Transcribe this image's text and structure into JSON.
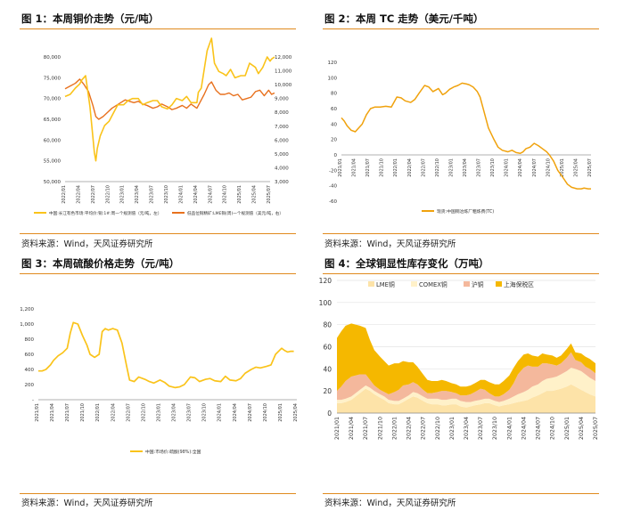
{
  "colors": {
    "orange": "#F0A20D",
    "deep_orange": "#E8711E",
    "yellow": "#FAC31A",
    "accent_rule": "#E08A1E",
    "lme": "#FDE3A8",
    "comex": "#FFF1C9",
    "shfe": "#F4B89C",
    "bonded": "#F5B800"
  },
  "source_text": "资料来源：Wind，天风证券研究所",
  "chart_data": [
    {
      "id": "copper-price",
      "type": "line",
      "title": "图 1：本周铜价走势（元/吨）",
      "x_ticks": [
        "2022/01",
        "2022/04",
        "2022/07",
        "2022/10",
        "2023/01",
        "2023/04",
        "2023/07",
        "2023/10",
        "2024/01",
        "2024/04",
        "2024/07",
        "2024/10",
        "2025/01",
        "2025/04",
        "2025/07"
      ],
      "y_left": {
        "min": 50000,
        "max": 80000,
        "ticks": [
          "50,000",
          "55,000",
          "60,000",
          "65,000",
          "70,000",
          "75,000",
          "80,000"
        ]
      },
      "y_right": {
        "min": 3000,
        "max": 12000,
        "ticks": [
          "3,000",
          "4,000",
          "5,000",
          "6,000",
          "7,000",
          "8,000",
          "9,000",
          "10,000",
          "11,000",
          "12,000"
        ]
      },
      "series": [
        {
          "name": "中国:长江有色市场:平均价:铜:1#:周一个规测值（元/吨，左）",
          "axis": "left",
          "x": [
            0,
            0.35,
            0.7,
            1,
            1.15,
            1.4,
            1.7,
            2,
            2.1,
            2.2,
            2.4,
            2.7,
            3,
            3.3,
            3.6,
            4,
            4.3,
            4.6,
            5,
            5.3,
            5.6,
            6,
            6.3,
            6.6,
            7,
            7.3,
            7.6,
            8,
            8.3,
            8.6,
            9,
            9.1,
            9.3,
            9.5,
            9.7,
            10,
            10.2,
            10.5,
            10.8,
            11,
            11.3,
            11.6,
            12,
            12.3,
            12.6,
            13,
            13.2,
            13.5,
            13.8,
            14,
            14.1,
            14.3
          ],
          "values": [
            70500,
            71000,
            72500,
            73500,
            74500,
            75500,
            68000,
            57000,
            55000,
            58000,
            61000,
            63500,
            64500,
            66500,
            68500,
            68500,
            69500,
            70000,
            70000,
            68500,
            69000,
            69500,
            69500,
            68000,
            67500,
            68500,
            70000,
            69500,
            70500,
            69000,
            69000,
            71500,
            72500,
            77000,
            81500,
            84500,
            78500,
            76500,
            76000,
            75500,
            77000,
            75000,
            75500,
            75500,
            78500,
            77500,
            76000,
            77500,
            80000,
            79000,
            79500,
            80000
          ]
        },
        {
          "name": "低品位铜精矿:LME铜(周)一个规测值（美元/吨，右）",
          "axis": "right",
          "x": [
            0,
            0.35,
            0.7,
            1,
            1.3,
            1.6,
            1.9,
            2.1,
            2.3,
            2.6,
            2.9,
            3.2,
            3.5,
            3.8,
            4.1,
            4.4,
            4.7,
            5,
            5.3,
            5.6,
            6,
            6.3,
            6.6,
            7,
            7.3,
            7.6,
            8,
            8.3,
            8.6,
            9,
            9.2,
            9.5,
            9.8,
            10,
            10.3,
            10.6,
            10.9,
            11.2,
            11.5,
            11.8,
            12.1,
            12.4,
            12.7,
            13,
            13.3,
            13.6,
            13.9,
            14.1,
            14.3
          ],
          "values": [
            9700,
            9900,
            10100,
            10400,
            10000,
            9500,
            8500,
            7700,
            7500,
            7700,
            8000,
            8300,
            8500,
            8700,
            8900,
            8800,
            8700,
            8800,
            8600,
            8500,
            8300,
            8400,
            8600,
            8400,
            8200,
            8300,
            8500,
            8300,
            8600,
            8300,
            8700,
            9300,
            10000,
            10200,
            9600,
            9300,
            9300,
            9400,
            9200,
            9300,
            8900,
            9000,
            9100,
            9500,
            9600,
            9200,
            9600,
            9300,
            9400
          ]
        }
      ]
    },
    {
      "id": "tc",
      "type": "line",
      "title": "图 2：本周 TC 走势（美元/千吨）",
      "x_ticks": [
        "2021/01",
        "2021/04",
        "2021/07",
        "2021/10",
        "2022/01",
        "2022/04",
        "2022/07",
        "2022/10",
        "2023/01",
        "2023/04",
        "2023/07",
        "2023/10",
        "2024/01",
        "2024/04",
        "2024/07",
        "2024/10",
        "2025/01",
        "2025/04",
        "2025/07"
      ],
      "y": {
        "min": -60,
        "max": 120,
        "ticks": [
          "-60",
          "-40",
          "-20",
          "0",
          "20",
          "40",
          "60",
          "80",
          "100",
          "120"
        ]
      },
      "series": [
        {
          "name": "现货:中国铜冶炼厂粗炼费(TC)",
          "x": [
            0,
            0.2,
            0.4,
            0.7,
            1,
            1.2,
            1.5,
            1.8,
            2.1,
            2.4,
            2.8,
            3.2,
            3.6,
            4,
            4.3,
            4.6,
            5,
            5.3,
            5.6,
            6,
            6.3,
            6.6,
            7,
            7.3,
            7.5,
            7.8,
            8.1,
            8.4,
            8.7,
            9,
            9.2,
            9.5,
            9.8,
            10,
            10.3,
            10.6,
            11,
            11.3,
            11.6,
            12,
            12.3,
            12.6,
            12.9,
            13.1,
            13.3,
            13.6,
            13.9,
            14.2,
            14.5,
            14.8,
            15,
            15.3,
            15.6,
            16,
            16.3,
            16.6,
            17,
            17.3,
            17.5,
            17.8,
            18
          ],
          "values": [
            48,
            44,
            38,
            32,
            30,
            34,
            40,
            52,
            60,
            62,
            62,
            63,
            62,
            75,
            74,
            70,
            68,
            72,
            80,
            90,
            88,
            82,
            86,
            78,
            80,
            85,
            88,
            90,
            93,
            92,
            91,
            88,
            82,
            75,
            55,
            35,
            20,
            10,
            6,
            4,
            6,
            3,
            2,
            4,
            8,
            10,
            15,
            12,
            8,
            4,
            0,
            -8,
            -20,
            -30,
            -38,
            -42,
            -44,
            -44,
            -43,
            -44,
            -44
          ]
        }
      ]
    },
    {
      "id": "sulfuric-acid",
      "type": "line",
      "title": "图 3：本周硫酸价格走势（元/吨）",
      "x_ticks": [
        "2021/01",
        "2021/04",
        "2021/07",
        "2021/10",
        "2022/01",
        "2022/04",
        "2022/07",
        "2022/10",
        "2023/01",
        "2023/04",
        "2023/07",
        "2023/10",
        "2024/01",
        "2024/04",
        "2024/07",
        "2024/10",
        "2025/01",
        "2025/04"
      ],
      "y": {
        "min": 0,
        "max": 1200,
        "ticks": [
          "-",
          "200",
          "400",
          "600",
          "800",
          "1,000",
          "1,200"
        ]
      },
      "series": [
        {
          "name": "中国:市场价:硫酸(98%):全国",
          "x": [
            0,
            0.25,
            0.5,
            0.8,
            1,
            1.3,
            1.6,
            1.9,
            2.1,
            2.3,
            2.6,
            2.9,
            3.2,
            3.4,
            3.7,
            4,
            4.2,
            4.4,
            4.6,
            4.9,
            5.2,
            5.5,
            5.8,
            6,
            6.3,
            6.6,
            7,
            7.3,
            7.6,
            8,
            8.3,
            8.6,
            9,
            9.3,
            9.6,
            10,
            10.3,
            10.6,
            11,
            11.3,
            11.6,
            12,
            12.3,
            12.6,
            13,
            13.3,
            13.6,
            14,
            14.3,
            14.6,
            15,
            15.3,
            15.6,
            16,
            16.2,
            16.4,
            16.6,
            16.8
          ],
          "values": [
            380,
            380,
            400,
            460,
            520,
            580,
            620,
            680,
            880,
            1020,
            1000,
            850,
            720,
            600,
            560,
            600,
            900,
            940,
            920,
            940,
            920,
            750,
            450,
            260,
            240,
            300,
            270,
            240,
            220,
            260,
            230,
            180,
            160,
            170,
            200,
            300,
            290,
            240,
            270,
            280,
            250,
            240,
            310,
            260,
            250,
            280,
            350,
            400,
            430,
            420,
            440,
            460,
            600,
            680,
            650,
            630,
            640,
            640
          ]
        }
      ]
    },
    {
      "id": "inventory",
      "type": "area",
      "title": "图 4：全球铜显性库存变化（万吨）",
      "x_ticks": [
        "2021/01",
        "2021/04",
        "2021/07",
        "2021/10",
        "2022/01",
        "2022/04",
        "2022/07",
        "2022/10",
        "2023/01",
        "2023/04",
        "2023/07",
        "2023/10",
        "2024/01",
        "2024/04",
        "2024/07",
        "2024/10",
        "2025/01",
        "2025/04",
        "2025/07"
      ],
      "y": {
        "min": 0,
        "max": 120,
        "ticks": [
          "0",
          "20",
          "40",
          "60",
          "80",
          "100",
          "120"
        ]
      },
      "legend": [
        "LME铜",
        "COMEX铜",
        "沪铜",
        "上海保税区"
      ],
      "x": [
        0,
        0.3,
        0.6,
        1,
        1.3,
        1.6,
        2,
        2.3,
        2.6,
        3,
        3.3,
        3.6,
        4,
        4.3,
        4.6,
        5,
        5.3,
        5.6,
        6,
        6.3,
        6.6,
        7,
        7.3,
        7.6,
        8,
        8.3,
        8.6,
        9,
        9.3,
        9.6,
        10,
        10.3,
        10.6,
        11,
        11.3,
        11.6,
        12,
        12.3,
        12.6,
        13,
        13.3,
        13.6,
        14,
        14.3,
        14.6,
        15,
        15.3,
        15.6,
        16,
        16.3,
        16.6,
        17,
        17.3,
        17.6,
        18
      ],
      "series": [
        {
          "name": "LME铜",
          "values": [
            9,
            9,
            10,
            12,
            15,
            18,
            22,
            20,
            17,
            14,
            12,
            9,
            8,
            8,
            10,
            13,
            15,
            14,
            11,
            9,
            8,
            8,
            7,
            7,
            8,
            8,
            6,
            5,
            6,
            7,
            8,
            9,
            9,
            7,
            6,
            7,
            8,
            9,
            10,
            11,
            12,
            14,
            16,
            18,
            20,
            20,
            21,
            22,
            24,
            26,
            24,
            21,
            19,
            17,
            15
          ]
        },
        {
          "name": "COMEX铜",
          "values": [
            3,
            3,
            3,
            3,
            3,
            3,
            3,
            3,
            3,
            3,
            3,
            3,
            3,
            3,
            3,
            3,
            4,
            4,
            4,
            4,
            5,
            5,
            5,
            5,
            5,
            5,
            5,
            5,
            4,
            4,
            4,
            4,
            4,
            4,
            4,
            4,
            5,
            6,
            7,
            8,
            9,
            10,
            10,
            11,
            11,
            12,
            12,
            13,
            14,
            15,
            16,
            17,
            16,
            15,
            14
          ]
        },
        {
          "name": "沪铜",
          "values": [
            8,
            12,
            16,
            18,
            16,
            14,
            10,
            7,
            5,
            4,
            4,
            5,
            8,
            10,
            12,
            10,
            9,
            8,
            6,
            5,
            5,
            6,
            8,
            8,
            6,
            5,
            5,
            6,
            7,
            8,
            10,
            8,
            5,
            4,
            5,
            6,
            8,
            12,
            18,
            22,
            22,
            18,
            16,
            16,
            14,
            12,
            10,
            10,
            12,
            14,
            8,
            8,
            7,
            8,
            7
          ]
        },
        {
          "name": "上海保税区",
          "values": [
            48,
            50,
            50,
            48,
            46,
            44,
            42,
            36,
            32,
            30,
            28,
            26,
            26,
            24,
            22,
            20,
            18,
            16,
            14,
            12,
            11,
            10,
            10,
            9,
            8,
            8,
            8,
            8,
            8,
            8,
            8,
            9,
            10,
            11,
            11,
            12,
            13,
            14,
            12,
            12,
            11,
            10,
            9,
            9,
            8,
            8,
            7,
            7,
            8,
            8,
            7,
            8,
            9,
            9,
            9
          ]
        }
      ]
    }
  ]
}
